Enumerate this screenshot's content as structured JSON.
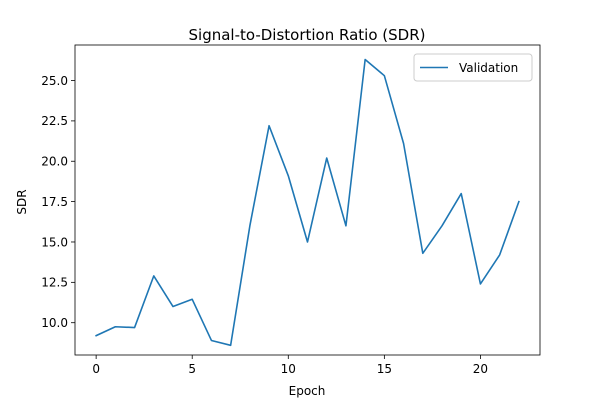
{
  "chart_data": {
    "type": "line",
    "title": "Signal-to-Distortion Ratio (SDR)",
    "xlabel": "Epoch",
    "ylabel": "SDR",
    "xlim": [
      -1.1,
      23.1
    ],
    "ylim": [
      8.0,
      27.2
    ],
    "xticks": [
      0,
      5,
      10,
      15,
      20
    ],
    "yticks": [
      10.0,
      12.5,
      15.0,
      17.5,
      20.0,
      22.5,
      25.0
    ],
    "xtick_labels": [
      "0",
      "5",
      "10",
      "15",
      "20"
    ],
    "ytick_labels": [
      "10.0",
      "12.5",
      "15.0",
      "17.5",
      "20.0",
      "22.5",
      "25.0"
    ],
    "grid": false,
    "legend_position": "top-right",
    "series": [
      {
        "name": "Validation",
        "color": "#1f77b4",
        "x": [
          0,
          1,
          2,
          3,
          4,
          5,
          6,
          7,
          8,
          9,
          10,
          11,
          12,
          13,
          14,
          15,
          16,
          17,
          18,
          19,
          20,
          21,
          22
        ],
        "y": [
          9.2,
          9.75,
          9.7,
          12.9,
          11.0,
          11.45,
          8.9,
          8.6,
          16.0,
          22.2,
          19.1,
          15.0,
          20.2,
          16.0,
          26.3,
          25.3,
          21.1,
          14.3,
          16.0,
          18.0,
          12.4,
          14.2,
          17.5
        ]
      }
    ]
  }
}
